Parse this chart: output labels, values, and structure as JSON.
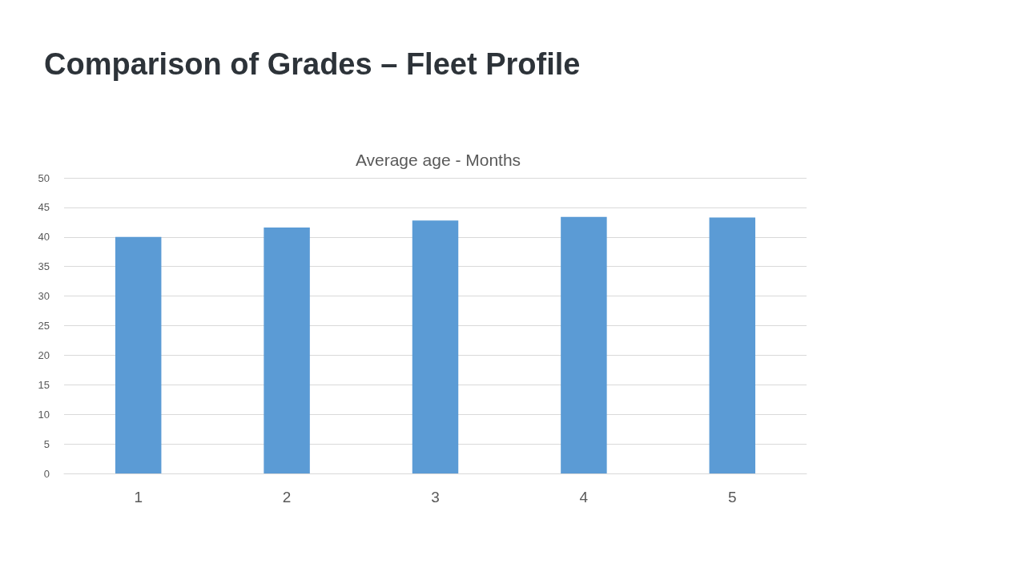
{
  "chart_data": {
    "type": "bar",
    "title": "Comparison of Grades – Fleet Profile",
    "subtitle": "Average age - Months",
    "categories": [
      "1",
      "2",
      "3",
      "4",
      "5"
    ],
    "values": [
      40,
      41.6,
      42.8,
      43.4,
      43.3
    ],
    "color": "#5b9bd5",
    "ylim": [
      0,
      50
    ],
    "yticks": [
      0,
      5,
      10,
      15,
      20,
      25,
      30,
      35,
      40,
      45,
      50
    ],
    "grid": "y"
  }
}
